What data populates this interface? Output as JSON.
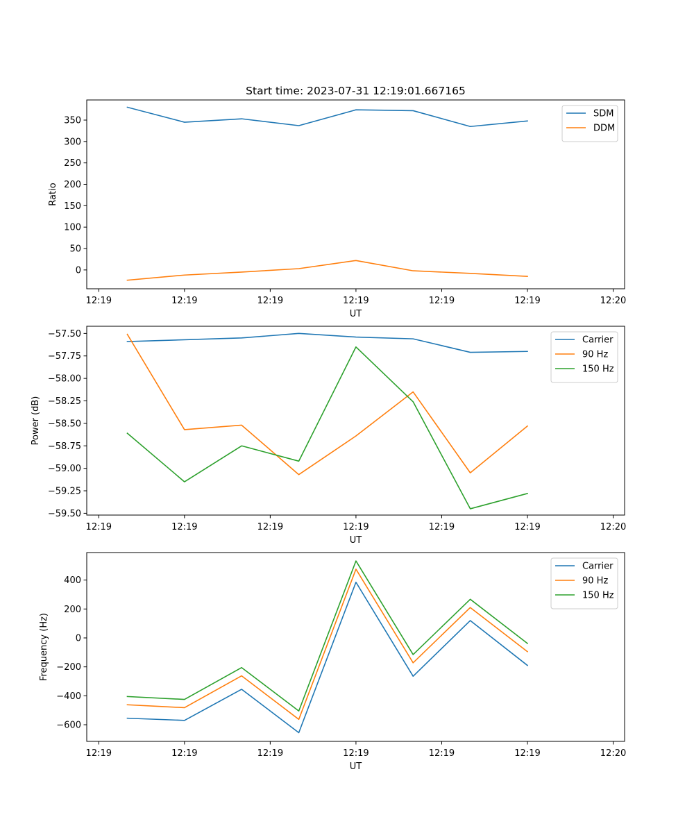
{
  "colors": {
    "blue": "#1f77b4",
    "orange": "#ff7f0e",
    "green": "#2ca02c"
  },
  "chart_data": [
    {
      "type": "line",
      "title": "Start time: 2023-07-31 12:19:01.667165",
      "xlabel": "UT",
      "ylabel": "Ratio",
      "legend_position": "top-right",
      "x": [
        1,
        2,
        3,
        4,
        5,
        6,
        7,
        8
      ],
      "xlim": [
        0.29,
        9.7
      ],
      "xticks": [
        0.5,
        2,
        3.5,
        5,
        6.5,
        8,
        9.5
      ],
      "xticklabels": [
        "12:19",
        "12:19",
        "12:19",
        "12:19",
        "12:19",
        "12:19",
        "12:20"
      ],
      "ylim": [
        -44,
        397
      ],
      "yticks": [
        0,
        50,
        100,
        150,
        200,
        250,
        300,
        350
      ],
      "yticklabels": [
        "0",
        "50",
        "100",
        "150",
        "200",
        "250",
        "300",
        "350"
      ],
      "series": [
        {
          "name": "SDM",
          "color": "#1f77b4",
          "values": [
            380,
            345,
            353,
            337,
            374,
            372,
            335,
            348
          ]
        },
        {
          "name": "DDM",
          "color": "#ff7f0e",
          "values": [
            -24,
            -12,
            -5,
            3,
            22,
            -2,
            -8,
            -15
          ]
        }
      ]
    },
    {
      "type": "line",
      "title": "",
      "xlabel": "UT",
      "ylabel": "Power (dB)",
      "legend_position": "top-right",
      "x": [
        1,
        2,
        3,
        4,
        5,
        6,
        7,
        8
      ],
      "xlim": [
        0.29,
        9.7
      ],
      "xticks": [
        0.5,
        2,
        3.5,
        5,
        6.5,
        8,
        9.5
      ],
      "xticklabels": [
        "12:19",
        "12:19",
        "12:19",
        "12:19",
        "12:19",
        "12:19",
        "12:20"
      ],
      "ylim": [
        -59.52,
        -57.42
      ],
      "yticks": [
        -59.5,
        -59.25,
        -59.0,
        -58.75,
        -58.5,
        -58.25,
        -58.0,
        -57.75,
        -57.5
      ],
      "yticklabels": [
        "−59.50",
        "−59.25",
        "−59.00",
        "−58.75",
        "−58.50",
        "−58.25",
        "−58.00",
        "−57.75",
        "−57.50"
      ],
      "series": [
        {
          "name": "Carrier",
          "color": "#1f77b4",
          "values": [
            -57.59,
            -57.57,
            -57.55,
            -57.5,
            -57.54,
            -57.56,
            -57.71,
            -57.7
          ]
        },
        {
          "name": "90 Hz",
          "color": "#ff7f0e",
          "values": [
            -57.51,
            -58.57,
            -58.52,
            -59.07,
            -58.64,
            -58.15,
            -59.05,
            -58.53
          ]
        },
        {
          "name": "150 Hz",
          "color": "#2ca02c",
          "values": [
            -58.61,
            -59.15,
            -58.75,
            -58.92,
            -57.65,
            -58.26,
            -59.45,
            -59.28
          ]
        }
      ]
    },
    {
      "type": "line",
      "title": "",
      "xlabel": "UT",
      "ylabel": "Frequency (Hz)",
      "legend_position": "top-right",
      "x": [
        1,
        2,
        3,
        4,
        5,
        6,
        7,
        8
      ],
      "xlim": [
        0.29,
        9.7
      ],
      "xticks": [
        0.5,
        2,
        3.5,
        5,
        6.5,
        8,
        9.5
      ],
      "xticklabels": [
        "12:19",
        "12:19",
        "12:19",
        "12:19",
        "12:19",
        "12:19",
        "12:20"
      ],
      "ylim": [
        -715,
        590
      ],
      "yticks": [
        -600,
        -400,
        -200,
        0,
        200,
        400
      ],
      "yticklabels": [
        "−600",
        "−400",
        "−200",
        "0",
        "200",
        "400"
      ],
      "series": [
        {
          "name": "Carrier",
          "color": "#1f77b4",
          "values": [
            -555,
            -570,
            -355,
            -655,
            385,
            -265,
            120,
            -190
          ]
        },
        {
          "name": "90 Hz",
          "color": "#ff7f0e",
          "values": [
            -462,
            -482,
            -262,
            -563,
            475,
            -172,
            210,
            -95
          ]
        },
        {
          "name": "150 Hz",
          "color": "#2ca02c",
          "values": [
            -405,
            -425,
            -205,
            -505,
            532,
            -115,
            267,
            -38
          ]
        }
      ]
    }
  ]
}
